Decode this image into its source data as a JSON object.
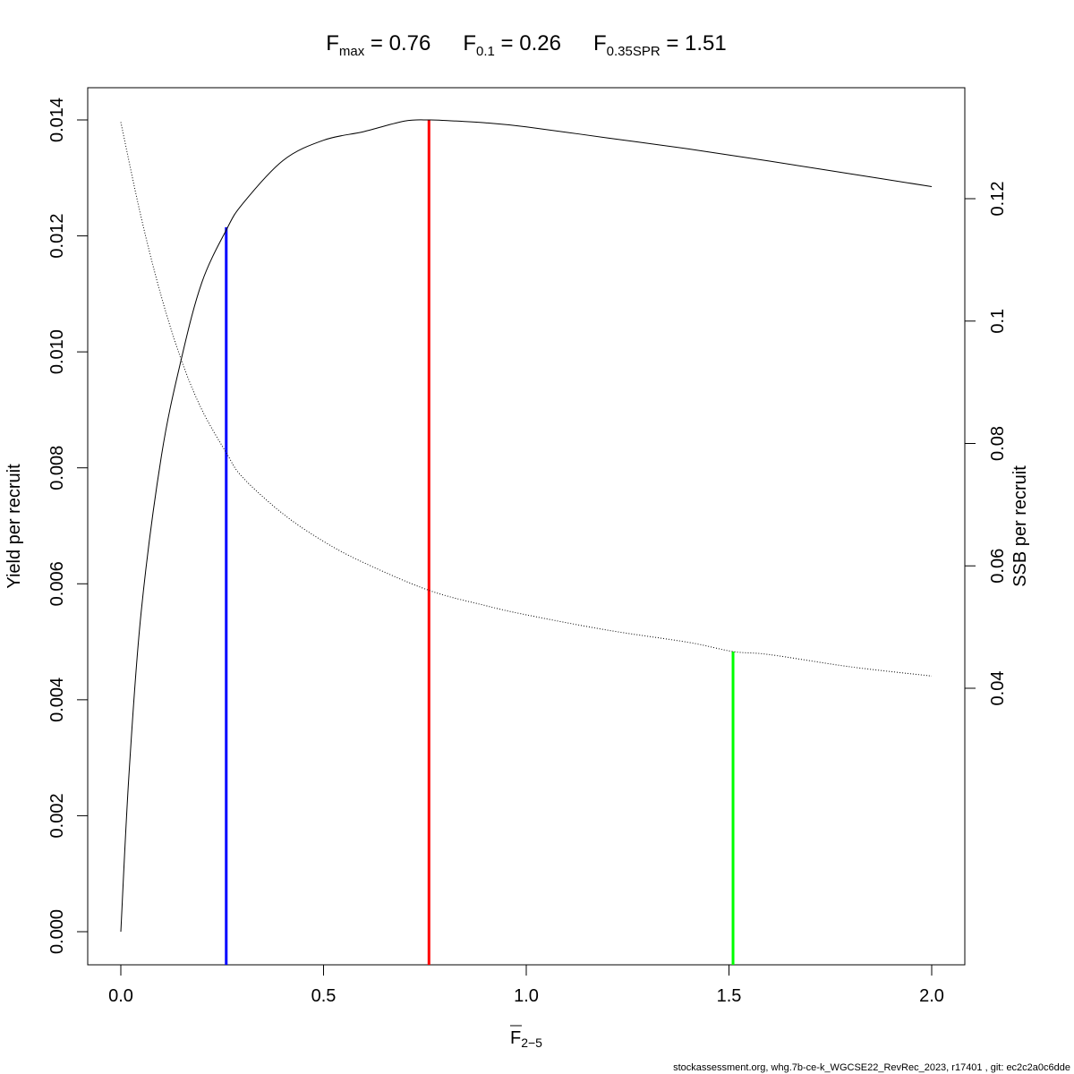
{
  "chart_data": {
    "type": "line",
    "title": {
      "fmax": {
        "symbol": "F",
        "sub": "max",
        "value": "0.76"
      },
      "f01": {
        "symbol": "F",
        "sub": "0.1",
        "value": "0.26"
      },
      "f035spr": {
        "symbol": "F",
        "sub": "0.35SPR",
        "value": "1.51"
      }
    },
    "xlabel": {
      "symbol": "F",
      "sub": "2−5"
    },
    "ylabel_left": "Yield per recruit",
    "ylabel_right": "SSB per recruit",
    "footer": "stockassessment.org, whg.7b-ce-k_WGCSE22_RevRec_2023, r17401 , git: ec2c2a0c6dde",
    "xlim": [
      0,
      2
    ],
    "ylim_left": [
      0,
      0.014
    ],
    "ylim_right": [
      0.042,
      0.1325
    ],
    "x_ticks": [
      "0.0",
      "0.5",
      "1.0",
      "1.5",
      "2.0"
    ],
    "y_ticks_left": [
      "0.000",
      "0.002",
      "0.004",
      "0.006",
      "0.008",
      "0.010",
      "0.012",
      "0.014"
    ],
    "y_ticks_right": [
      "0.04",
      "0.06",
      "0.08",
      "0.1",
      "0.12"
    ],
    "grid": false,
    "series": [
      {
        "axis": "left",
        "style": "solid",
        "color": "#000000",
        "x": [
          0,
          0.02,
          0.05,
          0.1,
          0.15,
          0.2,
          0.26,
          0.3,
          0.4,
          0.5,
          0.6,
          0.7,
          0.76,
          0.8,
          0.9,
          1.0,
          1.2,
          1.4,
          1.6,
          1.8,
          2.0
        ],
        "values": [
          0,
          0.0027,
          0.0055,
          0.0082,
          0.0099,
          0.0112,
          0.0121,
          0.01255,
          0.0133,
          0.01365,
          0.0138,
          0.01398,
          0.014,
          0.01399,
          0.01395,
          0.01388,
          0.01369,
          0.0135,
          0.01329,
          0.01307,
          0.01285
        ]
      },
      {
        "axis": "right",
        "style": "dotted",
        "color": "#000000",
        "x": [
          0,
          0.05,
          0.1,
          0.15,
          0.2,
          0.26,
          0.3,
          0.4,
          0.5,
          0.6,
          0.76,
          0.9,
          1.0,
          1.2,
          1.4,
          1.51,
          1.6,
          1.8,
          2.0
        ],
        "values": [
          0.1325,
          0.117,
          0.104,
          0.0935,
          0.0855,
          0.0785,
          0.0745,
          0.0685,
          0.064,
          0.0605,
          0.056,
          0.0535,
          0.052,
          0.0495,
          0.0475,
          0.046,
          0.0455,
          0.0435,
          0.042
        ]
      }
    ],
    "reference_lines": [
      {
        "name": "F0.1",
        "x": 0.26,
        "axis": "left",
        "top": 0.01215,
        "color": "#0000ff"
      },
      {
        "name": "Fmax",
        "x": 0.76,
        "axis": "left",
        "top": 0.014,
        "color": "#ff0000"
      },
      {
        "name": "F0.35SPR",
        "x": 1.51,
        "axis": "right",
        "top": 0.046,
        "color": "#00ff00"
      }
    ]
  }
}
